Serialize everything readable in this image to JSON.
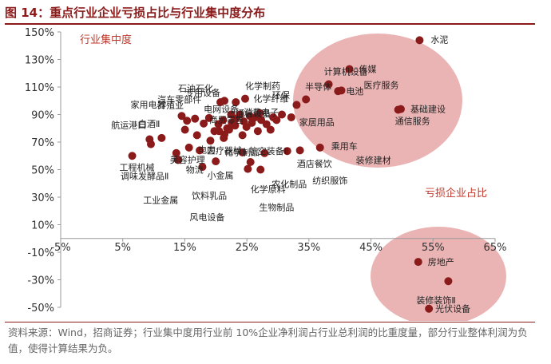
{
  "title": "图 14：重点行业企业亏损占比与行业集中度分布",
  "source": "资料来源：Wind，招商证券；行业集中度用行业前 10%企业净利润占行业总利润的比重度量，部分行业整体利润为负值，使得计算结果为负。",
  "colors": {
    "marker": "#8b1a1a",
    "ellipse": "#e8a7a7",
    "accent": "#c0392b"
  },
  "chart_data": {
    "type": "scatter",
    "xlim": [
      0.0,
      0.65
    ],
    "ylim": [
      -0.5,
      1.5
    ],
    "x_ticks": [
      "-5%",
      "5%",
      "15%",
      "25%",
      "35%",
      "45%",
      "55%",
      "65%"
    ],
    "y_ticks": [
      "150%",
      "130%",
      "110%",
      "90%",
      "70%",
      "50%",
      "30%",
      "10%",
      "-10%",
      "-30%",
      "-50%"
    ],
    "annotations": [
      "行业集中度",
      "亏损企业占比"
    ],
    "points": [
      {
        "label": "水泥",
        "x": 0.537,
        "y": 1.44
      },
      {
        "label": "传媒",
        "x": 0.432,
        "y": 1.23
      },
      {
        "label": "计算机设备",
        "x": 0.401,
        "y": 1.12
      },
      {
        "label": "电池",
        "x": 0.415,
        "y": 1.07
      },
      {
        "label": "医疗服务",
        "x": 0.42,
        "y": 1.075
      },
      {
        "label": "基础建设",
        "x": 0.509,
        "y": 0.94
      },
      {
        "label": "通信服务",
        "x": 0.505,
        "y": 0.935
      },
      {
        "label": "半导体",
        "x": 0.367,
        "y": 1.01
      },
      {
        "label": "化学纤维",
        "x": 0.353,
        "y": 0.97
      },
      {
        "label": "家居用品",
        "x": 0.345,
        "y": 0.88
      },
      {
        "label": "乘用车",
        "x": 0.388,
        "y": 0.66
      },
      {
        "label": "装修建材",
        "x": 0.358,
        "y": 0.64
      },
      {
        "label": "酒店餐饮",
        "x": 0.339,
        "y": 0.635
      },
      {
        "label": "纺织服饰",
        "x": 0.305,
        "y": 0.62
      },
      {
        "label": "农化制品",
        "x": 0.299,
        "y": 0.5
      },
      {
        "label": "生物制品",
        "x": 0.28,
        "y": 0.505
      },
      {
        "label": "化学原料",
        "x": 0.284,
        "y": 0.555
      },
      {
        "label": "航空装备Ⅱ",
        "x": 0.272,
        "y": 0.625
      },
      {
        "label": "石油石化",
        "x": 0.245,
        "y": 1.0
      },
      {
        "label": "化学制药",
        "x": 0.276,
        "y": 1.015
      },
      {
        "label": "通信设备",
        "x": 0.262,
        "y": 0.99
      },
      {
        "label": "专用设备",
        "x": 0.239,
        "y": 0.99
      },
      {
        "label": "商贸零售",
        "x": 0.222,
        "y": 0.875
      },
      {
        "label": "电网设备",
        "x": 0.214,
        "y": 0.835
      },
      {
        "label": "汽车零部件",
        "x": 0.201,
        "y": 0.87
      },
      {
        "label": "养殖业",
        "x": 0.189,
        "y": 0.855
      },
      {
        "label": "家用电器",
        "x": 0.181,
        "y": 0.89
      },
      {
        "label": "白酒Ⅱ",
        "x": 0.151,
        "y": 0.73
      },
      {
        "label": "航运港口",
        "x": 0.133,
        "y": 0.72
      },
      {
        "label": "工程机械",
        "x": 0.107,
        "y": 0.6
      },
      {
        "label": "调味发酵品Ⅱ",
        "x": 0.135,
        "y": 0.685
      },
      {
        "label": "美容护理",
        "x": 0.173,
        "y": 0.62
      },
      {
        "label": "工业金属",
        "x": 0.176,
        "y": 0.57
      },
      {
        "label": "电力",
        "x": 0.208,
        "y": 0.64
      },
      {
        "label": "物流",
        "x": 0.204,
        "y": 0.75
      },
      {
        "label": "小金属",
        "x": 0.224,
        "y": 0.71
      },
      {
        "label": "饮料乳品",
        "x": 0.232,
        "y": 0.56
      },
      {
        "label": "风电设备",
        "x": 0.212,
        "y": 0.52
      },
      {
        "label": "化学制品",
        "x": 0.245,
        "y": 0.755
      },
      {
        "label": "医疗器械",
        "x": 0.252,
        "y": 0.79
      },
      {
        "label": "消费电子",
        "x": 0.262,
        "y": 0.87
      },
      {
        "label": "环保",
        "x": 0.283,
        "y": 0.89
      },
      {
        "label": "房地产",
        "x": 0.535,
        "y": -0.17
      },
      {
        "label": "装修装饰Ⅱ",
        "x": 0.58,
        "y": -0.31
      },
      {
        "label": "光伏设备",
        "x": 0.551,
        "y": -0.51
      }
    ],
    "unlabeled_points": [
      {
        "x": 0.23,
        "y": 0.78
      },
      {
        "x": 0.236,
        "y": 0.83
      },
      {
        "x": 0.243,
        "y": 0.86
      },
      {
        "x": 0.249,
        "y": 0.8
      },
      {
        "x": 0.256,
        "y": 0.84
      },
      {
        "x": 0.261,
        "y": 0.82
      },
      {
        "x": 0.268,
        "y": 0.9
      },
      {
        "x": 0.274,
        "y": 0.85
      },
      {
        "x": 0.278,
        "y": 0.81
      },
      {
        "x": 0.286,
        "y": 0.84
      },
      {
        "x": 0.291,
        "y": 0.88
      },
      {
        "x": 0.295,
        "y": 0.78
      },
      {
        "x": 0.3,
        "y": 0.86
      },
      {
        "x": 0.308,
        "y": 0.83
      },
      {
        "x": 0.314,
        "y": 0.79
      },
      {
        "x": 0.318,
        "y": 0.88
      },
      {
        "x": 0.323,
        "y": 0.86
      },
      {
        "x": 0.331,
        "y": 0.9
      },
      {
        "x": 0.272,
        "y": 0.75
      },
      {
        "x": 0.255,
        "y": 0.9
      },
      {
        "x": 0.298,
        "y": 0.91
      },
      {
        "x": 0.192,
        "y": 0.66
      },
      {
        "x": 0.186,
        "y": 0.79
      },
      {
        "x": 0.244,
        "y": 0.73
      },
      {
        "x": 0.237,
        "y": 0.78
      }
    ]
  }
}
